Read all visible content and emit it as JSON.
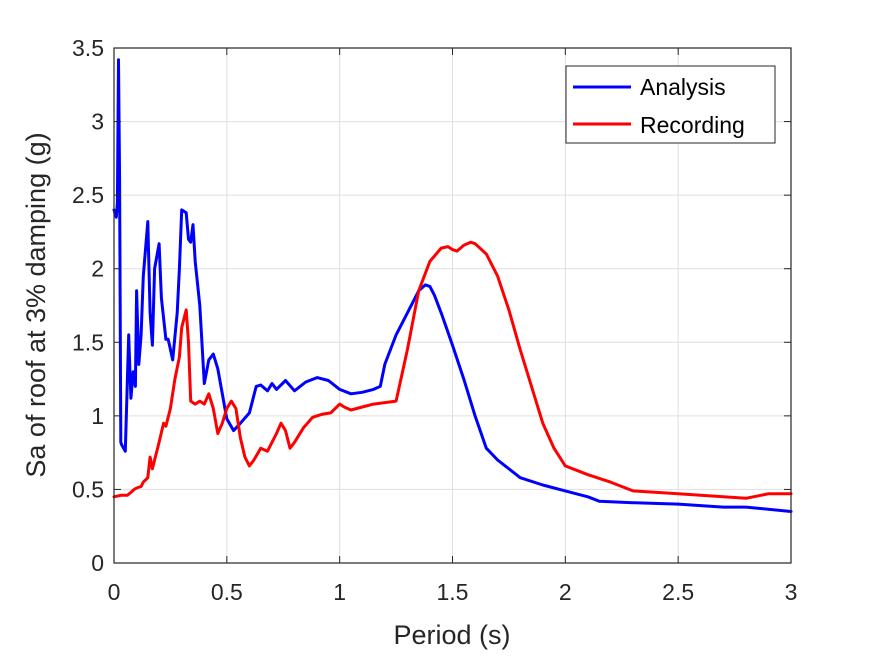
{
  "chart_data": {
    "type": "line",
    "title": "",
    "xlabel": "Period (s)",
    "ylabel": "Sa of roof at 3% damping (g)",
    "xlim": [
      0,
      3
    ],
    "ylim": [
      0,
      3.5
    ],
    "xticks": [
      0,
      0.5,
      1,
      1.5,
      2,
      2.5,
      3
    ],
    "xtick_labels": [
      "0",
      "0.5",
      "1",
      "1.5",
      "2",
      "2.5",
      "3"
    ],
    "yticks": [
      0,
      0.5,
      1,
      1.5,
      2,
      2.5,
      3,
      3.5
    ],
    "ytick_labels": [
      "0",
      "0.5",
      "1",
      "1.5",
      "2",
      "2.5",
      "3",
      "3.5"
    ],
    "grid": true,
    "legend_position": "top-right",
    "series": [
      {
        "name": "Analysis",
        "color": "#0000ff",
        "x": [
          0.0,
          0.01,
          0.015,
          0.02,
          0.025,
          0.03,
          0.035,
          0.05,
          0.065,
          0.075,
          0.085,
          0.095,
          0.1,
          0.11,
          0.12,
          0.13,
          0.15,
          0.16,
          0.17,
          0.18,
          0.2,
          0.21,
          0.23,
          0.24,
          0.26,
          0.28,
          0.29,
          0.3,
          0.32,
          0.33,
          0.34,
          0.35,
          0.36,
          0.38,
          0.4,
          0.42,
          0.44,
          0.46,
          0.48,
          0.5,
          0.53,
          0.56,
          0.6,
          0.63,
          0.65,
          0.68,
          0.7,
          0.72,
          0.76,
          0.8,
          0.85,
          0.9,
          0.95,
          1.0,
          1.05,
          1.1,
          1.15,
          1.18,
          1.2,
          1.25,
          1.3,
          1.35,
          1.38,
          1.4,
          1.42,
          1.45,
          1.5,
          1.55,
          1.6,
          1.65,
          1.7,
          1.75,
          1.8,
          1.9,
          2.0,
          2.1,
          2.15,
          2.3,
          2.5,
          2.7,
          2.8,
          3.0
        ],
        "y": [
          2.4,
          2.35,
          2.45,
          3.42,
          2.6,
          0.82,
          0.8,
          0.76,
          1.55,
          1.12,
          1.3,
          1.2,
          1.85,
          1.35,
          1.55,
          1.95,
          2.32,
          1.7,
          1.48,
          2.0,
          2.17,
          1.8,
          1.52,
          1.52,
          1.38,
          1.7,
          2.0,
          2.4,
          2.38,
          2.2,
          2.18,
          2.3,
          2.05,
          1.75,
          1.22,
          1.38,
          1.42,
          1.32,
          1.15,
          0.98,
          0.9,
          0.95,
          1.02,
          1.2,
          1.21,
          1.17,
          1.22,
          1.18,
          1.24,
          1.17,
          1.23,
          1.26,
          1.24,
          1.18,
          1.15,
          1.16,
          1.18,
          1.2,
          1.35,
          1.55,
          1.7,
          1.85,
          1.89,
          1.88,
          1.82,
          1.7,
          1.48,
          1.25,
          1.0,
          0.78,
          0.7,
          0.64,
          0.58,
          0.53,
          0.49,
          0.45,
          0.42,
          0.41,
          0.4,
          0.38,
          0.38,
          0.35
        ]
      },
      {
        "name": "Recording",
        "color": "#ff0000",
        "x": [
          0.0,
          0.03,
          0.06,
          0.09,
          0.1,
          0.12,
          0.13,
          0.15,
          0.16,
          0.17,
          0.18,
          0.2,
          0.22,
          0.23,
          0.25,
          0.27,
          0.29,
          0.3,
          0.32,
          0.33,
          0.34,
          0.36,
          0.38,
          0.4,
          0.42,
          0.44,
          0.46,
          0.48,
          0.5,
          0.52,
          0.54,
          0.56,
          0.58,
          0.6,
          0.62,
          0.65,
          0.68,
          0.7,
          0.72,
          0.74,
          0.76,
          0.78,
          0.8,
          0.84,
          0.88,
          0.92,
          0.96,
          0.98,
          1.0,
          1.02,
          1.05,
          1.1,
          1.15,
          1.2,
          1.25,
          1.3,
          1.35,
          1.4,
          1.45,
          1.48,
          1.5,
          1.52,
          1.55,
          1.58,
          1.6,
          1.65,
          1.7,
          1.75,
          1.8,
          1.85,
          1.9,
          1.95,
          2.0,
          2.1,
          2.2,
          2.3,
          2.5,
          2.7,
          2.8,
          2.9,
          3.0
        ],
        "y": [
          0.45,
          0.46,
          0.46,
          0.5,
          0.51,
          0.52,
          0.55,
          0.58,
          0.72,
          0.64,
          0.7,
          0.82,
          0.95,
          0.93,
          1.05,
          1.25,
          1.4,
          1.6,
          1.72,
          1.5,
          1.1,
          1.08,
          1.1,
          1.08,
          1.15,
          1.05,
          0.88,
          0.95,
          1.05,
          1.1,
          1.05,
          0.85,
          0.72,
          0.66,
          0.7,
          0.78,
          0.76,
          0.82,
          0.88,
          0.95,
          0.9,
          0.78,
          0.82,
          0.92,
          0.99,
          1.01,
          1.02,
          1.05,
          1.08,
          1.06,
          1.04,
          1.06,
          1.08,
          1.09,
          1.1,
          1.45,
          1.85,
          2.05,
          2.14,
          2.15,
          2.13,
          2.12,
          2.16,
          2.18,
          2.17,
          2.1,
          1.95,
          1.72,
          1.45,
          1.2,
          0.95,
          0.78,
          0.66,
          0.6,
          0.55,
          0.49,
          0.47,
          0.45,
          0.44,
          0.47,
          0.47
        ]
      }
    ]
  }
}
